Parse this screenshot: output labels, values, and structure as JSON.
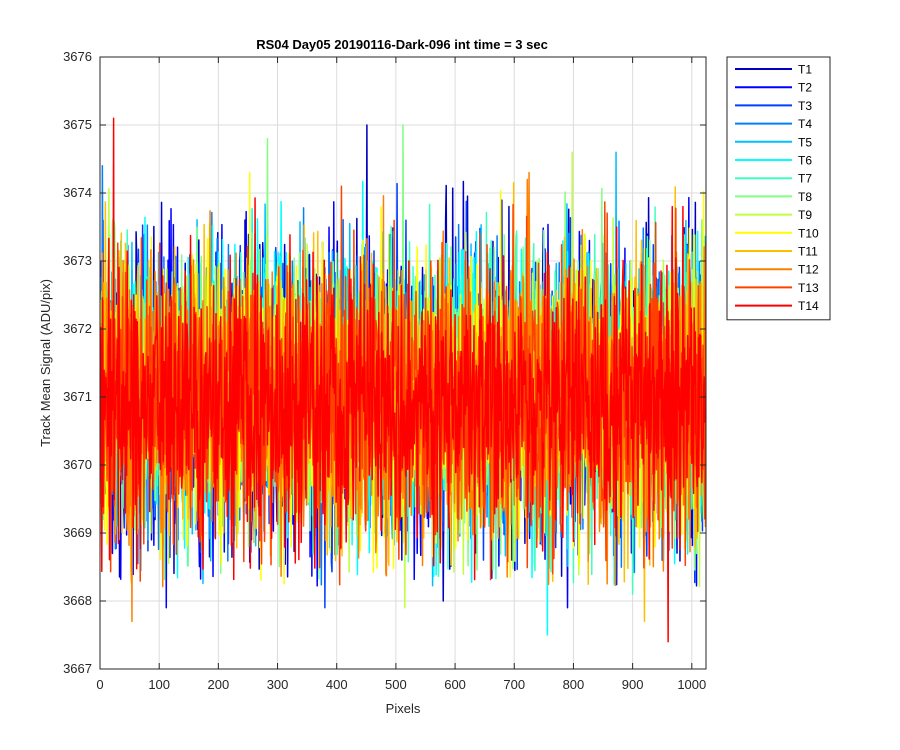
{
  "chart_data": {
    "type": "line",
    "title": "RS04 Day05 20190116-Dark-096 int time = 3 sec",
    "xlabel": "Pixels",
    "ylabel": "Track Mean Signal (ADU/pix)",
    "xlim": [
      0,
      1024
    ],
    "ylim": [
      3667,
      3676
    ],
    "x_ticks": [
      0,
      100,
      200,
      300,
      400,
      500,
      600,
      700,
      800,
      900,
      1000
    ],
    "y_ticks": [
      3667,
      3668,
      3669,
      3670,
      3671,
      3672,
      3673,
      3674,
      3675,
      3676
    ],
    "grid": true,
    "legend_position": "outside-top-right",
    "x_start": 1,
    "x_end": 1024,
    "x_step": 1,
    "series": [
      {
        "name": "T1",
        "color": "#0000bf",
        "mean": 3671.0,
        "noise": 1.05,
        "seed": 11,
        "spikes": [
          [
            451,
            3675.0
          ],
          [
            5,
            3673.6
          ],
          [
            580,
            3668.0
          ]
        ]
      },
      {
        "name": "T2",
        "color": "#0000ff",
        "mean": 3671.0,
        "noise": 1.05,
        "seed": 23,
        "spikes": [
          [
            112,
            3667.9
          ],
          [
            790,
            3667.9
          ]
        ]
      },
      {
        "name": "T3",
        "color": "#0040ff",
        "mean": 3671.1,
        "noise": 1.0,
        "seed": 37,
        "spikes": [
          [
            380,
            3667.9
          ]
        ]
      },
      {
        "name": "T4",
        "color": "#0080ff",
        "mean": 3671.1,
        "noise": 1.0,
        "seed": 41,
        "spikes": [
          [
            4,
            3674.4
          ]
        ]
      },
      {
        "name": "T5",
        "color": "#00bfff",
        "mean": 3671.1,
        "noise": 1.0,
        "seed": 53,
        "spikes": [
          [
            872,
            3674.6
          ]
        ]
      },
      {
        "name": "T6",
        "color": "#00ffff",
        "mean": 3671.1,
        "noise": 1.0,
        "seed": 67,
        "spikes": [
          [
            756,
            3667.5
          ]
        ]
      },
      {
        "name": "T7",
        "color": "#40ffbf",
        "mean": 3671.1,
        "noise": 1.0,
        "seed": 71,
        "spikes": [
          [
            900,
            3668.1
          ]
        ]
      },
      {
        "name": "T8",
        "color": "#80ff80",
        "mean": 3671.1,
        "noise": 1.0,
        "seed": 83,
        "spikes": [
          [
            512,
            3675.0
          ],
          [
            283,
            3674.8
          ]
        ]
      },
      {
        "name": "T9",
        "color": "#bfff40",
        "mean": 3671.0,
        "noise": 1.0,
        "seed": 97,
        "spikes": [
          [
            515,
            3667.9
          ],
          [
            798,
            3674.6
          ]
        ]
      },
      {
        "name": "T10",
        "color": "#ffff00",
        "mean": 3671.0,
        "noise": 1.0,
        "seed": 101,
        "spikes": [
          [
            253,
            3674.3
          ]
        ]
      },
      {
        "name": "T11",
        "color": "#ffbf00",
        "mean": 3671.0,
        "noise": 1.0,
        "seed": 113,
        "spikes": [
          [
            920,
            3667.7
          ]
        ]
      },
      {
        "name": "T12",
        "color": "#ff8000",
        "mean": 3670.9,
        "noise": 1.0,
        "seed": 127,
        "spikes": [
          [
            725,
            3674.3
          ],
          [
            54,
            3667.7
          ]
        ]
      },
      {
        "name": "T13",
        "color": "#ff4000",
        "mean": 3670.9,
        "noise": 1.0,
        "seed": 131,
        "spikes": [
          [
            408,
            3674.1
          ]
        ]
      },
      {
        "name": "T14",
        "color": "#ff0000",
        "mean": 3670.9,
        "noise": 0.95,
        "seed": 139,
        "spikes": [
          [
            23,
            3675.1
          ],
          [
            960,
            3667.4
          ],
          [
            985,
            3673.8
          ]
        ]
      }
    ]
  }
}
